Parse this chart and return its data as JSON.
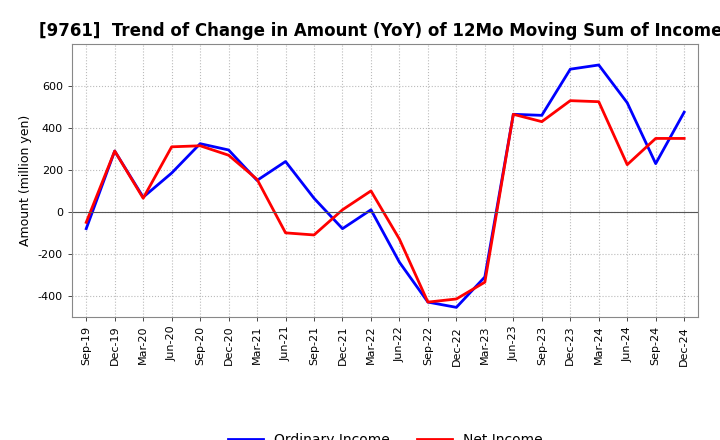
{
  "title": "[9761]  Trend of Change in Amount (YoY) of 12Mo Moving Sum of Incomes",
  "ylabel": "Amount (million yen)",
  "x_labels": [
    "Sep-19",
    "Dec-19",
    "Mar-20",
    "Jun-20",
    "Sep-20",
    "Dec-20",
    "Mar-21",
    "Jun-21",
    "Sep-21",
    "Dec-21",
    "Mar-22",
    "Jun-22",
    "Sep-22",
    "Dec-22",
    "Mar-23",
    "Jun-23",
    "Sep-23",
    "Dec-23",
    "Mar-24",
    "Jun-24",
    "Sep-24",
    "Dec-24"
  ],
  "ordinary_income": [
    -80,
    290,
    70,
    185,
    325,
    295,
    150,
    240,
    65,
    -80,
    10,
    -240,
    -430,
    -455,
    -310,
    465,
    460,
    680,
    700,
    520,
    230,
    475
  ],
  "net_income": [
    -50,
    290,
    65,
    310,
    315,
    270,
    155,
    -100,
    -110,
    10,
    100,
    -130,
    -430,
    -415,
    -335,
    465,
    430,
    530,
    525,
    225,
    350,
    350
  ],
  "ordinary_color": "#0000ff",
  "net_color": "#ff0000",
  "ylim": [
    -500,
    800
  ],
  "yticks": [
    -400,
    -200,
    0,
    200,
    400,
    600
  ],
  "background_color": "#ffffff",
  "grid_color": "#bbbbbb",
  "title_fontsize": 12,
  "axis_fontsize": 9,
  "tick_fontsize": 8,
  "legend_fontsize": 10,
  "linewidth": 2.0
}
